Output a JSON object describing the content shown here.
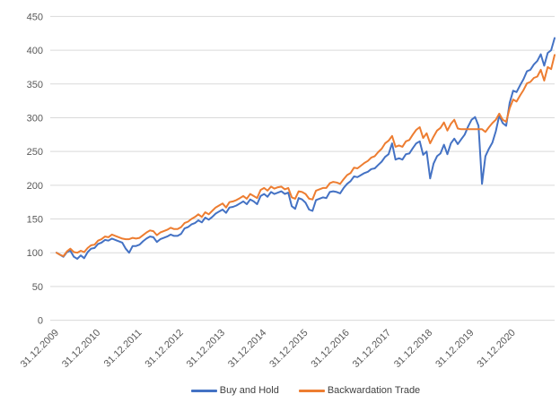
{
  "chart_data": {
    "type": "line",
    "title": "",
    "x_unit": "monthly observations from 31.12.2009 to 31.12.2021",
    "x_tick_labels": [
      "31.12.2009",
      "31.12.2010",
      "31.12.2011",
      "31.12.2012",
      "31.12.2013",
      "31.12.2014",
      "31.12.2015",
      "31.12.2016",
      "31.12.2017",
      "31.12.2018",
      "31.12.2019",
      "31.12.2020"
    ],
    "x_tick_month_indices": [
      0,
      12,
      24,
      36,
      48,
      60,
      72,
      84,
      96,
      108,
      120,
      132
    ],
    "y_ticks": [
      0,
      50,
      100,
      150,
      200,
      250,
      300,
      350,
      400,
      450
    ],
    "ylim": [
      0,
      450
    ],
    "grid": true,
    "legend_position": "bottom",
    "gridline_color": "#D9D9D9",
    "axis_line_color": "#D9D9D9",
    "axis_label_color": "#595959",
    "legend_text_color": "#404040",
    "series": [
      {
        "name": "Buy and Hold",
        "color": "#4472C4",
        "values": [
          100,
          97,
          94,
          101,
          103,
          94,
          91,
          96,
          92,
          101,
          106,
          107,
          113,
          115,
          119,
          118,
          121,
          119,
          117,
          115,
          106,
          100,
          110,
          110,
          112,
          117,
          121,
          124,
          123,
          116,
          120,
          122,
          124,
          127,
          125,
          125,
          128,
          136,
          138,
          142,
          144,
          148,
          145,
          152,
          149,
          153,
          158,
          161,
          164,
          159,
          167,
          168,
          170,
          173,
          176,
          172,
          179,
          176,
          172,
          184,
          187,
          183,
          190,
          187,
          189,
          191,
          187,
          189,
          169,
          165,
          181,
          179,
          174,
          164,
          162,
          178,
          180,
          182,
          181,
          190,
          191,
          190,
          188,
          196,
          202,
          206,
          213,
          212,
          215,
          218,
          220,
          224,
          225,
          230,
          235,
          242,
          246,
          262,
          238,
          240,
          238,
          246,
          247,
          255,
          262,
          265,
          245,
          250,
          210,
          232,
          243,
          247,
          260,
          246,
          262,
          269,
          261,
          268,
          275,
          287,
          297,
          301,
          288,
          202,
          243,
          254,
          263,
          280,
          303,
          292,
          288,
          322,
          340,
          338,
          348,
          357,
          369,
          371,
          379,
          384,
          394,
          377,
          396,
          400,
          418
        ]
      },
      {
        "name": "Backwardation Trade",
        "color": "#ED7D31",
        "values": [
          100,
          97,
          95,
          102,
          106,
          101,
          100,
          103,
          101,
          107,
          111,
          112,
          118,
          120,
          124,
          123,
          127,
          125,
          123,
          121,
          120,
          120,
          122,
          121,
          122,
          126,
          130,
          133,
          132,
          126,
          130,
          132,
          134,
          137,
          135,
          135,
          138,
          144,
          146,
          150,
          153,
          157,
          153,
          160,
          157,
          162,
          167,
          170,
          173,
          167,
          175,
          176,
          178,
          181,
          184,
          180,
          187,
          184,
          181,
          193,
          196,
          192,
          198,
          195,
          197,
          198,
          194,
          196,
          182,
          180,
          191,
          190,
          187,
          180,
          179,
          192,
          194,
          196,
          196,
          203,
          205,
          204,
          202,
          209,
          215,
          218,
          226,
          225,
          229,
          233,
          236,
          241,
          243,
          249,
          254,
          262,
          266,
          273,
          257,
          259,
          257,
          265,
          267,
          275,
          282,
          286,
          270,
          277,
          262,
          272,
          281,
          285,
          293,
          281,
          291,
          297,
          284,
          283,
          283,
          283,
          283,
          283,
          283,
          283,
          279,
          286,
          292,
          297,
          306,
          297,
          294,
          314,
          327,
          324,
          333,
          341,
          351,
          353,
          359,
          361,
          371,
          355,
          375,
          372,
          393
        ]
      }
    ]
  }
}
